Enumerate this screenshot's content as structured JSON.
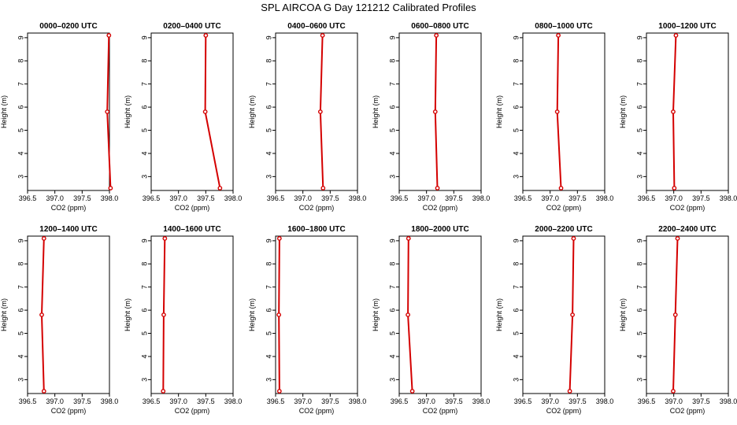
{
  "title": "SPL AIRCOA G  Day 121212  Calibrated Profiles",
  "chart_data": {
    "type": "line",
    "xlabel": "CO2 (ppm)",
    "ylabel": "Height (m)",
    "xlim": [
      396.5,
      398.0
    ],
    "ylim": [
      2.4,
      9.2
    ],
    "xticks": [
      "396.5",
      "397.0",
      "397.5",
      "398.0"
    ],
    "yticks": [
      "3",
      "4",
      "5",
      "6",
      "7",
      "8",
      "9"
    ],
    "xtick_values": [
      396.5,
      397.0,
      397.5,
      398.0
    ],
    "ytick_values": [
      3,
      4,
      5,
      6,
      7,
      8,
      9
    ],
    "grid": false,
    "heights": [
      9.1,
      5.8,
      2.5
    ],
    "line_color": "#d40000",
    "panels": [
      {
        "title": "0000–0200 UTC",
        "values": [
          397.99,
          397.96,
          398.02
        ]
      },
      {
        "title": "0200–0400 UTC",
        "values": [
          397.5,
          397.49,
          397.76
        ]
      },
      {
        "title": "0400–0600 UTC",
        "values": [
          397.36,
          397.32,
          397.37
        ]
      },
      {
        "title": "0600–0800 UTC",
        "values": [
          397.18,
          397.16,
          397.2
        ]
      },
      {
        "title": "0800–1000 UTC",
        "values": [
          397.15,
          397.13,
          397.2
        ]
      },
      {
        "title": "1000–1200 UTC",
        "values": [
          397.04,
          396.99,
          397.01
        ]
      },
      {
        "title": "1200–1400 UTC",
        "values": [
          396.8,
          396.76,
          396.8
        ]
      },
      {
        "title": "1400–1600 UTC",
        "values": [
          396.75,
          396.73,
          396.72
        ]
      },
      {
        "title": "1600–1800 UTC",
        "values": [
          396.57,
          396.56,
          396.57
        ]
      },
      {
        "title": "1800–2000 UTC",
        "values": [
          396.67,
          396.66,
          396.74
        ]
      },
      {
        "title": "2000–2200 UTC",
        "values": [
          397.43,
          397.41,
          397.36
        ]
      },
      {
        "title": "2200–2400 UTC",
        "values": [
          397.07,
          397.03,
          396.99
        ]
      }
    ]
  }
}
